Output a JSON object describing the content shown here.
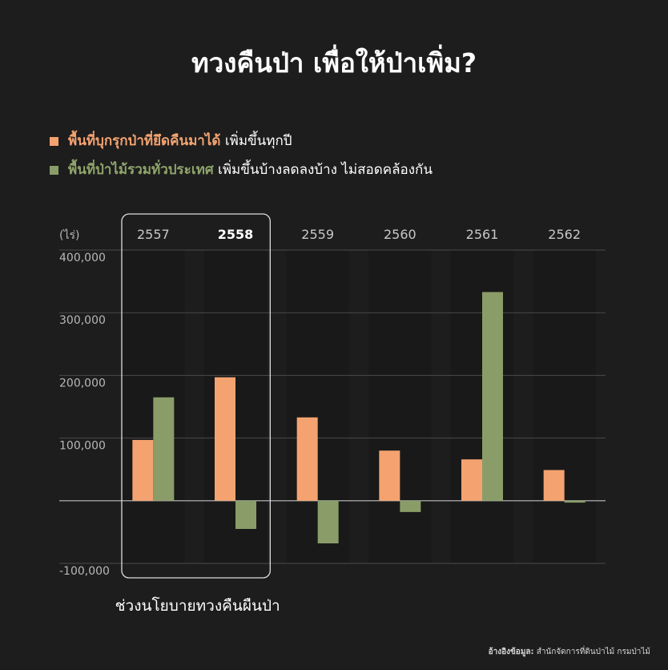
{
  "title": "ทวงคืนป่า เพื่อให้ป่าเพิ่ม?",
  "legend": {
    "item1_bold": "พื้นที่บุกรุกป่าที่ยึดคืนมาได้",
    "item1_rest": " เพิ่มขึ้นทุกปี",
    "item2_bold": "พื้นที่ป่าไม้รวมทั่วประเทศ",
    "item2_rest": " เพิ่มขึ้นบ้างลดลงบ้าง ไม่สอดคล้องกัน"
  },
  "highlight_label": "ช่วงนโยบายทวงคืนผืนป่า",
  "source": {
    "label": "อ้างอิงข้อมูล:",
    "text": " สำนักจัดการที่ดินป่าไม้ กรมป่าไม้"
  },
  "colors": {
    "background": "#1d1d1d",
    "reclaimed": "#f4a370",
    "forest": "#8a9d68",
    "highlight_box": "#dcdcdc",
    "gridline": "#4a4a4a"
  },
  "chart_data": {
    "type": "bar",
    "unit_label": "(ไร่)",
    "categories": [
      "2557",
      "2558",
      "2559",
      "2560",
      "2561",
      "2562"
    ],
    "bold_category": "2558",
    "highlight_categories": [
      "2557",
      "2558"
    ],
    "ylim": [
      -100000,
      400000
    ],
    "yticks": [
      -100000,
      0,
      100000,
      200000,
      300000,
      400000
    ],
    "ytick_labels": [
      "-100,000",
      "",
      "100,000",
      "200,000",
      "300,000",
      "400,000"
    ],
    "grid": true,
    "series": [
      {
        "name": "พื้นที่บุกรุกป่าที่ยึดคืนมาได้",
        "color": "#f4a370",
        "values": [
          97000,
          197000,
          133000,
          80000,
          66000,
          49000
        ]
      },
      {
        "name": "พื้นที่ป่าไม้รวมทั่วประเทศ",
        "color": "#8a9d68",
        "values": [
          165000,
          -45000,
          -68000,
          -18000,
          333000,
          -3000
        ]
      }
    ]
  }
}
